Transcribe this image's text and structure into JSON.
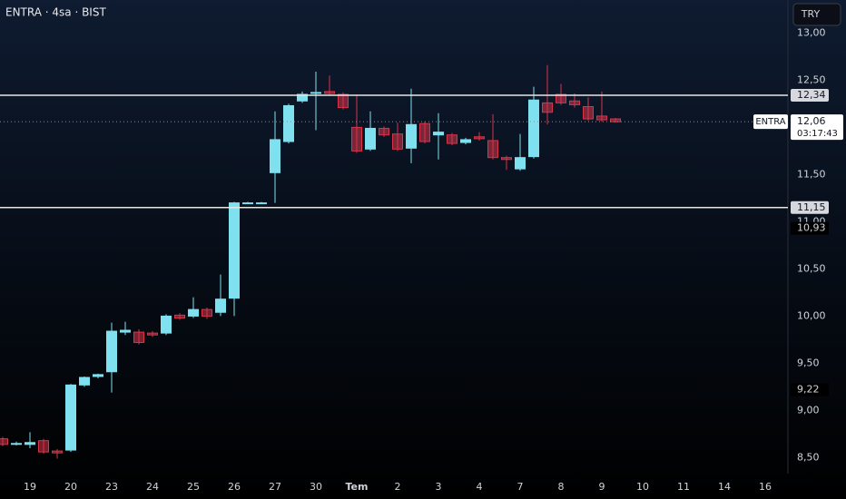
{
  "chart_data": {
    "type": "candlestick",
    "title": "ENTRA · 4sa · BIST",
    "currency": "TRY",
    "symbol": "ENTRA",
    "categories": [
      null,
      null,
      "19",
      null,
      null,
      "20",
      null,
      null,
      "23",
      null,
      null,
      "24",
      null,
      null,
      "25",
      null,
      null,
      "26",
      null,
      null,
      "27",
      null,
      null,
      "30",
      null,
      null,
      "Tem",
      null,
      null,
      "2",
      null,
      null,
      "3",
      null,
      null,
      "4",
      null,
      null,
      "7",
      null,
      null,
      "8",
      null,
      null,
      "9",
      null,
      null,
      "10",
      null,
      null,
      "11",
      null,
      null,
      "14",
      null,
      null,
      "16"
    ],
    "open": [
      8.7,
      8.65,
      8.64,
      8.68,
      8.57,
      8.58,
      9.27,
      9.36,
      9.41,
      9.83,
      9.83,
      9.82,
      9.82,
      10.01,
      10.0,
      10.07,
      10.04,
      10.19,
      11.2,
      11.2,
      11.52,
      11.85,
      12.28,
      12.37,
      12.38,
      12.35,
      12.0,
      11.77,
      11.99,
      11.93,
      11.78,
      12.04,
      11.92,
      11.92,
      11.84,
      11.9,
      11.86,
      11.68,
      11.56,
      11.69,
      12.26,
      12.35,
      12.28,
      12.22,
      12.12,
      12.09,
      null,
      null,
      null,
      null,
      null,
      null,
      null,
      null,
      null,
      null,
      null
    ],
    "high": [
      8.72,
      8.67,
      8.77,
      8.7,
      8.59,
      9.28,
      9.36,
      9.39,
      9.93,
      9.94,
      9.86,
      9.84,
      10.02,
      10.03,
      10.2,
      10.09,
      10.44,
      11.21,
      11.21,
      11.21,
      12.17,
      12.25,
      12.38,
      12.59,
      12.55,
      12.37,
      12.34,
      12.17,
      12.01,
      12.05,
      12.41,
      12.06,
      12.15,
      11.94,
      11.89,
      11.95,
      12.14,
      11.7,
      11.93,
      12.43,
      12.66,
      12.46,
      12.36,
      12.32,
      12.38,
      12.1,
      null,
      null,
      null,
      null,
      null,
      null,
      null,
      null,
      null,
      null,
      null
    ],
    "low": [
      8.62,
      8.63,
      8.6,
      8.54,
      8.49,
      8.56,
      9.25,
      9.34,
      9.19,
      9.8,
      9.7,
      9.78,
      9.8,
      9.96,
      9.98,
      9.97,
      10.0,
      10.0,
      11.19,
      11.19,
      11.2,
      11.83,
      12.26,
      11.97,
      12.34,
      12.19,
      11.73,
      11.75,
      11.9,
      11.75,
      11.62,
      11.83,
      11.66,
      11.81,
      11.82,
      11.86,
      11.66,
      11.55,
      11.54,
      11.67,
      12.03,
      12.24,
      12.21,
      12.07,
      12.06,
      12.05,
      null,
      null,
      null,
      null,
      null,
      null,
      null,
      null,
      null,
      null,
      null
    ],
    "close": [
      8.64,
      8.65,
      8.66,
      8.56,
      8.55,
      9.27,
      9.35,
      9.38,
      9.84,
      9.85,
      9.72,
      9.8,
      10.0,
      9.98,
      10.07,
      10.0,
      10.18,
      11.2,
      11.2,
      11.2,
      11.87,
      12.23,
      12.35,
      12.37,
      12.36,
      12.21,
      11.75,
      11.99,
      11.92,
      11.77,
      12.03,
      11.85,
      11.95,
      11.83,
      11.87,
      11.88,
      11.68,
      11.66,
      11.68,
      12.29,
      12.16,
      12.26,
      12.24,
      12.09,
      12.08,
      12.06,
      null,
      null,
      null,
      null,
      null,
      null,
      null,
      null,
      null,
      null,
      null
    ],
    "up_color": "#7fe1ef",
    "down_color": "#d8344a",
    "ylim": [
      8.35,
      13.35
    ],
    "yticks": [
      {
        "value": 8.5,
        "label": "8,50"
      },
      {
        "value": 9,
        "label": "9,00"
      },
      {
        "value": 9.5,
        "label": "9,50"
      },
      {
        "value": 10,
        "label": "10,00"
      },
      {
        "value": 10.5,
        "label": "10,50"
      },
      {
        "value": 11,
        "label": "11,00"
      },
      {
        "value": 11.5,
        "label": "11,50"
      },
      {
        "value": 12.5,
        "label": "12,50"
      },
      {
        "value": 13,
        "label": "13,00"
      }
    ],
    "horizontal_lines": [
      {
        "value": 12.34,
        "label": "12,34"
      },
      {
        "value": 11.15,
        "label": "11,15"
      }
    ],
    "price_marks": [
      {
        "value": 10.93,
        "label": "10,93"
      },
      {
        "value": 9.22,
        "label": "9,22"
      }
    ],
    "last_price": {
      "value": 12.06,
      "label": "12,06",
      "countdown": "03:17:43"
    }
  }
}
